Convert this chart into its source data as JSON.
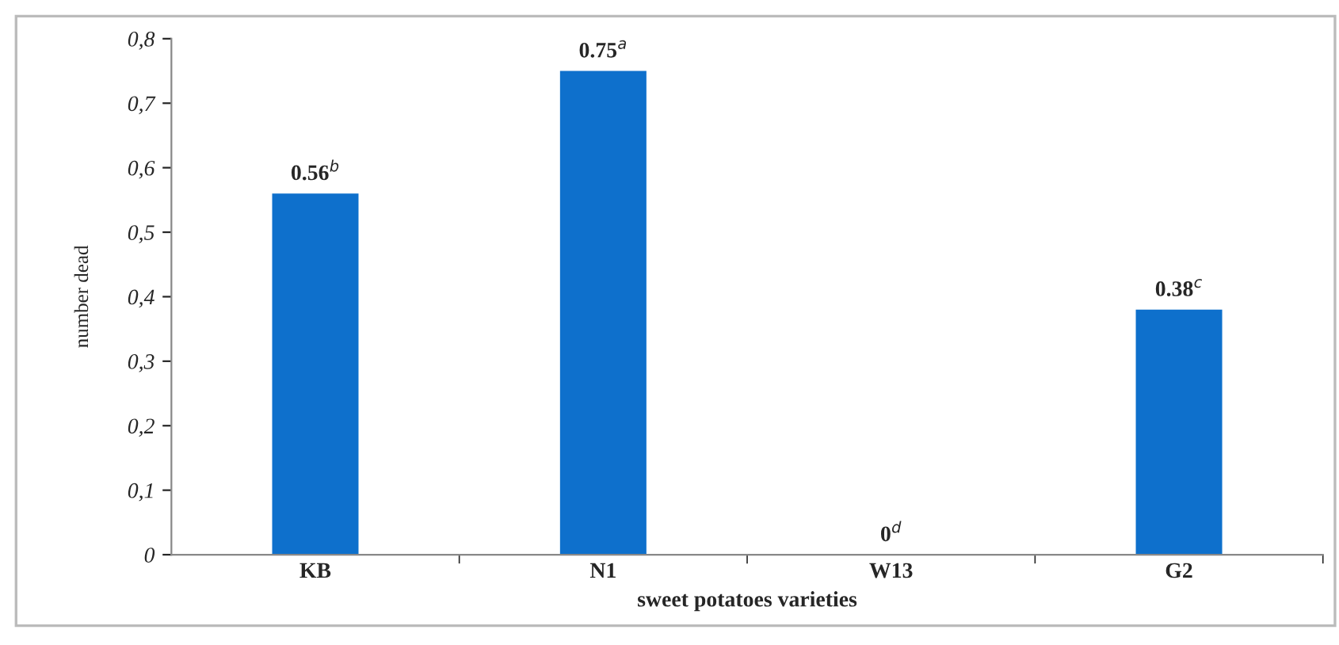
{
  "chart_data": {
    "type": "bar",
    "xlabel": "sweet potatoes varieties",
    "ylabel": "number dead",
    "categories": [
      "KB",
      "N1",
      "W13",
      "G2"
    ],
    "values": [
      0.56,
      0.75,
      0,
      0.38
    ],
    "value_labels": [
      "0.56$^{b}$",
      "0.75$^{a}$",
      "0$^{d}$",
      "0.38$^{c}$"
    ],
    "color": "#0e70cc",
    "ylim": [
      0,
      0.8
    ],
    "yticks": [
      {
        "value": 0,
        "label": "0"
      },
      {
        "value": 0.1,
        "label": "0,1"
      },
      {
        "value": 0.2,
        "label": "0,2"
      },
      {
        "value": 0.3,
        "label": "0,3"
      },
      {
        "value": 0.4,
        "label": "0,4"
      },
      {
        "value": 0.5,
        "label": "0,5"
      },
      {
        "value": 0.6,
        "label": "0,6"
      },
      {
        "value": 0.7,
        "label": "0,7"
      },
      {
        "value": 0.8,
        "label": "0,8"
      }
    ],
    "grid": false,
    "legend": false
  }
}
